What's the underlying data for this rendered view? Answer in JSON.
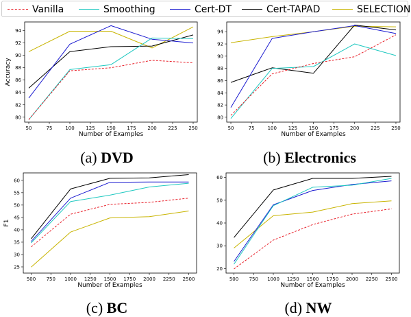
{
  "legend": {
    "items": [
      {
        "name": "Vanilla",
        "color": "#e8202a",
        "dash": true
      },
      {
        "name": "Smoothing",
        "color": "#1ec8c0",
        "dash": false
      },
      {
        "name": "Cert-DT",
        "color": "#1a1ad0",
        "dash": false
      },
      {
        "name": "Cert-TAPAD",
        "color": "#000000",
        "dash": false
      },
      {
        "name": "SELECTION",
        "color": "#c8b400",
        "dash": false
      }
    ]
  },
  "captions": [
    {
      "prefix": "(a) ",
      "bold": "DVD"
    },
    {
      "prefix": "(b) ",
      "bold": "Electronics"
    },
    {
      "prefix": "(c) ",
      "bold": "BC"
    },
    {
      "prefix": "(d) ",
      "bold": "NW"
    }
  ],
  "chart_data": [
    {
      "type": "line",
      "title": "DVD",
      "xlabel": "Number of Examples",
      "ylabel": "Accuracy",
      "x": [
        50,
        100,
        150,
        200,
        250
      ],
      "xticks": [
        "50",
        "75",
        "100",
        "125",
        "150",
        "175",
        "200",
        "225",
        "250"
      ],
      "xtick_values": [
        50,
        75,
        100,
        125,
        150,
        175,
        200,
        225,
        250
      ],
      "yticks": [
        "80",
        "82",
        "84",
        "86",
        "88",
        "90",
        "92",
        "94"
      ],
      "ytick_values": [
        80,
        82,
        84,
        86,
        88,
        90,
        92,
        94
      ],
      "xlim": [
        45,
        255
      ],
      "ylim": [
        79.2,
        95.4
      ],
      "series": [
        {
          "name": "Vanilla",
          "values": [
            79.6,
            87.5,
            88.0,
            89.2,
            88.8
          ]
        },
        {
          "name": "Smoothing",
          "values": [
            79.6,
            87.7,
            88.5,
            92.8,
            92.7
          ]
        },
        {
          "name": "Cert-DT",
          "values": [
            83.1,
            91.8,
            94.8,
            92.6,
            92.0
          ]
        },
        {
          "name": "Cert-TAPAD",
          "values": [
            84.7,
            90.6,
            91.4,
            91.5,
            93.3
          ]
        },
        {
          "name": "SELECTION",
          "values": [
            90.6,
            93.9,
            93.9,
            91.2,
            94.6
          ]
        }
      ]
    },
    {
      "type": "line",
      "title": "Electronics",
      "xlabel": "Number of Examples",
      "ylabel": "",
      "x": [
        50,
        100,
        150,
        200,
        250
      ],
      "xticks": [
        "50",
        "75",
        "100",
        "125",
        "150",
        "175",
        "200",
        "225",
        "250"
      ],
      "xtick_values": [
        50,
        75,
        100,
        125,
        150,
        175,
        200,
        225,
        250
      ],
      "yticks": [
        "80",
        "82",
        "84",
        "86",
        "88",
        "90",
        "92",
        "94"
      ],
      "ytick_values": [
        80,
        82,
        84,
        86,
        88,
        90,
        92,
        94
      ],
      "xlim": [
        45,
        255
      ],
      "ylim": [
        79.2,
        95.6
      ],
      "series": [
        {
          "name": "Vanilla",
          "values": [
            80.3,
            87.1,
            88.8,
            89.9,
            93.5
          ]
        },
        {
          "name": "Smoothing",
          "values": [
            79.8,
            88.0,
            88.3,
            92.0,
            90.1
          ]
        },
        {
          "name": "Cert-DT",
          "values": [
            81.6,
            92.9,
            94.0,
            95.0,
            93.7
          ]
        },
        {
          "name": "Cert-TAPAD",
          "values": [
            85.7,
            88.1,
            87.2,
            95.1,
            94.3
          ]
        },
        {
          "name": "SELECTION",
          "values": [
            92.2,
            93.2,
            94.0,
            94.9,
            94.8
          ]
        }
      ]
    },
    {
      "type": "line",
      "title": "BC",
      "xlabel": "Number of Examples",
      "ylabel": "F1",
      "x": [
        500,
        1000,
        1500,
        2000,
        2500
      ],
      "xticks": [
        "500",
        "750",
        "1000",
        "1250",
        "1500",
        "1750",
        "2000",
        "2250",
        "2500"
      ],
      "xtick_values": [
        500,
        750,
        1000,
        1250,
        1500,
        1750,
        2000,
        2250,
        2500
      ],
      "yticks": [
        "25",
        "30",
        "35",
        "40",
        "45",
        "50",
        "55",
        "60"
      ],
      "ytick_values": [
        25,
        30,
        35,
        40,
        45,
        50,
        55,
        60
      ],
      "xlim": [
        400,
        2600
      ],
      "ylim": [
        22.5,
        63.0
      ],
      "series": [
        {
          "name": "Vanilla",
          "values": [
            33.1,
            46.3,
            50.3,
            51.1,
            52.8
          ]
        },
        {
          "name": "Smoothing",
          "values": [
            34.7,
            51.4,
            54.0,
            57.3,
            58.8
          ]
        },
        {
          "name": "Cert-DT",
          "values": [
            35.3,
            52.8,
            59.2,
            59.3,
            59.3
          ]
        },
        {
          "name": "Cert-TAPAD",
          "values": [
            36.4,
            56.5,
            60.8,
            61.0,
            62.3
          ]
        },
        {
          "name": "SELECTION",
          "values": [
            24.9,
            39.1,
            44.8,
            45.3,
            47.6
          ]
        }
      ]
    },
    {
      "type": "line",
      "title": "NW",
      "xlabel": "Number of Examples",
      "ylabel": "",
      "x": [
        500,
        1000,
        1500,
        2000,
        2500
      ],
      "xticks": [
        "500",
        "750",
        "1000",
        "1250",
        "1500",
        "1750",
        "2000",
        "2250",
        "2500"
      ],
      "xtick_values": [
        500,
        750,
        1000,
        1250,
        1500,
        1750,
        2000,
        2250,
        2500
      ],
      "yticks": [
        "20",
        "30",
        "40",
        "50",
        "60"
      ],
      "ytick_values": [
        20,
        30,
        40,
        50,
        60
      ],
      "xlim": [
        400,
        2600
      ],
      "ylim": [
        18.0,
        62.0
      ],
      "series": [
        {
          "name": "Vanilla",
          "values": [
            19.8,
            32.5,
            39.3,
            43.9,
            46.2
          ]
        },
        {
          "name": "Smoothing",
          "values": [
            21.9,
            47.6,
            55.7,
            56.6,
            59.6
          ]
        },
        {
          "name": "Cert-DT",
          "values": [
            23.1,
            48.0,
            54.3,
            56.9,
            58.5
          ]
        },
        {
          "name": "Cert-TAPAD",
          "values": [
            33.6,
            54.5,
            59.6,
            59.6,
            60.5
          ]
        },
        {
          "name": "SELECTION",
          "values": [
            29.0,
            43.2,
            44.8,
            48.5,
            49.7
          ]
        }
      ]
    }
  ]
}
